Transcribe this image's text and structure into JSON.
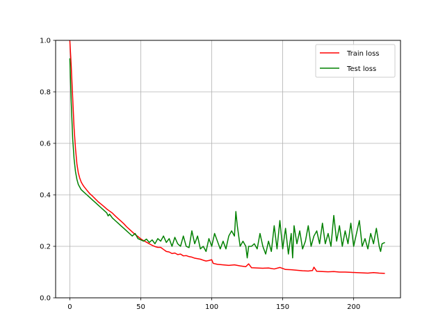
{
  "chart_data": {
    "type": "line",
    "title": "",
    "xlabel": "",
    "ylabel": "",
    "xlim": [
      -10,
      233
    ],
    "ylim": [
      0.0,
      1.0
    ],
    "xticks": [
      0,
      50,
      100,
      150,
      200
    ],
    "yticks": [
      0.0,
      0.2,
      0.4,
      0.6,
      0.8,
      1.0
    ],
    "xtick_labels": [
      "0",
      "50",
      "100",
      "150",
      "200"
    ],
    "ytick_labels": [
      "0.0",
      "0.2",
      "0.4",
      "0.6",
      "0.8",
      "1.0"
    ],
    "grid": true,
    "legend_position": "top-right",
    "series": [
      {
        "name": "Train loss",
        "color": "#ff0000",
        "points": [
          [
            0,
            1.0
          ],
          [
            1,
            0.9
          ],
          [
            2,
            0.78
          ],
          [
            3,
            0.66
          ],
          [
            4,
            0.58
          ],
          [
            5,
            0.52
          ],
          [
            6,
            0.485
          ],
          [
            7,
            0.465
          ],
          [
            8,
            0.45
          ],
          [
            9,
            0.44
          ],
          [
            10,
            0.432
          ],
          [
            12,
            0.418
          ],
          [
            14,
            0.405
          ],
          [
            16,
            0.395
          ],
          [
            18,
            0.384
          ],
          [
            20,
            0.373
          ],
          [
            22,
            0.364
          ],
          [
            24,
            0.355
          ],
          [
            26,
            0.345
          ],
          [
            28,
            0.337
          ],
          [
            30,
            0.329
          ],
          [
            32,
            0.318
          ],
          [
            34,
            0.308
          ],
          [
            36,
            0.298
          ],
          [
            38,
            0.288
          ],
          [
            40,
            0.276
          ],
          [
            42,
            0.266
          ],
          [
            44,
            0.256
          ],
          [
            46,
            0.246
          ],
          [
            48,
            0.238
          ],
          [
            50,
            0.229
          ],
          [
            52,
            0.222
          ],
          [
            54,
            0.216
          ],
          [
            56,
            0.21
          ],
          [
            58,
            0.204
          ],
          [
            60,
            0.199
          ],
          [
            62,
            0.196
          ],
          [
            64,
            0.196
          ],
          [
            66,
            0.188
          ],
          [
            68,
            0.18
          ],
          [
            70,
            0.178
          ],
          [
            72,
            0.172
          ],
          [
            74,
            0.174
          ],
          [
            76,
            0.168
          ],
          [
            78,
            0.17
          ],
          [
            80,
            0.163
          ],
          [
            82,
            0.164
          ],
          [
            84,
            0.16
          ],
          [
            86,
            0.158
          ],
          [
            88,
            0.154
          ],
          [
            90,
            0.152
          ],
          [
            92,
            0.15
          ],
          [
            94,
            0.146
          ],
          [
            96,
            0.143
          ],
          [
            98,
            0.145
          ],
          [
            100,
            0.148
          ],
          [
            101,
            0.134
          ],
          [
            104,
            0.13
          ],
          [
            108,
            0.128
          ],
          [
            112,
            0.126
          ],
          [
            116,
            0.128
          ],
          [
            120,
            0.124
          ],
          [
            124,
            0.121
          ],
          [
            126,
            0.132
          ],
          [
            128,
            0.117
          ],
          [
            132,
            0.116
          ],
          [
            136,
            0.115
          ],
          [
            140,
            0.116
          ],
          [
            144,
            0.112
          ],
          [
            148,
            0.118
          ],
          [
            152,
            0.11
          ],
          [
            156,
            0.109
          ],
          [
            160,
            0.107
          ],
          [
            164,
            0.105
          ],
          [
            168,
            0.104
          ],
          [
            171,
            0.106
          ],
          [
            172,
            0.119
          ],
          [
            174,
            0.103
          ],
          [
            178,
            0.102
          ],
          [
            182,
            0.101
          ],
          [
            186,
            0.102
          ],
          [
            190,
            0.1
          ],
          [
            194,
            0.1
          ],
          [
            198,
            0.099
          ],
          [
            202,
            0.098
          ],
          [
            206,
            0.097
          ],
          [
            210,
            0.096
          ],
          [
            214,
            0.098
          ],
          [
            218,
            0.096
          ],
          [
            222,
            0.095
          ]
        ]
      },
      {
        "name": "Test loss",
        "color": "#008000",
        "points": [
          [
            0,
            0.93
          ],
          [
            1,
            0.76
          ],
          [
            2,
            0.62
          ],
          [
            3,
            0.54
          ],
          [
            4,
            0.49
          ],
          [
            5,
            0.46
          ],
          [
            6,
            0.44
          ],
          [
            7,
            0.43
          ],
          [
            8,
            0.42
          ],
          [
            10,
            0.41
          ],
          [
            12,
            0.4
          ],
          [
            14,
            0.39
          ],
          [
            16,
            0.38
          ],
          [
            18,
            0.37
          ],
          [
            20,
            0.36
          ],
          [
            22,
            0.35
          ],
          [
            24,
            0.34
          ],
          [
            26,
            0.33
          ],
          [
            27,
            0.318
          ],
          [
            28,
            0.325
          ],
          [
            30,
            0.31
          ],
          [
            32,
            0.3
          ],
          [
            34,
            0.29
          ],
          [
            36,
            0.28
          ],
          [
            38,
            0.27
          ],
          [
            40,
            0.26
          ],
          [
            42,
            0.25
          ],
          [
            44,
            0.24
          ],
          [
            46,
            0.25
          ],
          [
            48,
            0.23
          ],
          [
            50,
            0.225
          ],
          [
            52,
            0.22
          ],
          [
            54,
            0.228
          ],
          [
            56,
            0.215
          ],
          [
            58,
            0.225
          ],
          [
            60,
            0.21
          ],
          [
            62,
            0.23
          ],
          [
            64,
            0.22
          ],
          [
            66,
            0.24
          ],
          [
            68,
            0.215
          ],
          [
            70,
            0.23
          ],
          [
            72,
            0.2
          ],
          [
            74,
            0.235
          ],
          [
            76,
            0.21
          ],
          [
            78,
            0.2
          ],
          [
            80,
            0.24
          ],
          [
            82,
            0.2
          ],
          [
            84,
            0.195
          ],
          [
            86,
            0.26
          ],
          [
            88,
            0.21
          ],
          [
            90,
            0.24
          ],
          [
            92,
            0.19
          ],
          [
            94,
            0.2
          ],
          [
            96,
            0.18
          ],
          [
            98,
            0.23
          ],
          [
            100,
            0.2
          ],
          [
            102,
            0.25
          ],
          [
            104,
            0.22
          ],
          [
            106,
            0.19
          ],
          [
            108,
            0.22
          ],
          [
            110,
            0.19
          ],
          [
            112,
            0.24
          ],
          [
            114,
            0.26
          ],
          [
            116,
            0.24
          ],
          [
            117,
            0.335
          ],
          [
            118,
            0.28
          ],
          [
            120,
            0.2
          ],
          [
            122,
            0.22
          ],
          [
            124,
            0.2
          ],
          [
            125,
            0.155
          ],
          [
            126,
            0.2
          ],
          [
            128,
            0.2
          ],
          [
            130,
            0.21
          ],
          [
            132,
            0.19
          ],
          [
            134,
            0.25
          ],
          [
            136,
            0.2
          ],
          [
            138,
            0.17
          ],
          [
            140,
            0.22
          ],
          [
            142,
            0.18
          ],
          [
            144,
            0.28
          ],
          [
            146,
            0.19
          ],
          [
            148,
            0.3
          ],
          [
            150,
            0.19
          ],
          [
            152,
            0.27
          ],
          [
            154,
            0.17
          ],
          [
            156,
            0.25
          ],
          [
            157,
            0.155
          ],
          [
            158,
            0.28
          ],
          [
            160,
            0.21
          ],
          [
            162,
            0.26
          ],
          [
            164,
            0.19
          ],
          [
            166,
            0.22
          ],
          [
            168,
            0.28
          ],
          [
            170,
            0.2
          ],
          [
            172,
            0.24
          ],
          [
            174,
            0.26
          ],
          [
            176,
            0.21
          ],
          [
            178,
            0.29
          ],
          [
            180,
            0.21
          ],
          [
            182,
            0.25
          ],
          [
            184,
            0.2
          ],
          [
            186,
            0.32
          ],
          [
            188,
            0.22
          ],
          [
            190,
            0.28
          ],
          [
            192,
            0.2
          ],
          [
            194,
            0.26
          ],
          [
            196,
            0.21
          ],
          [
            198,
            0.29
          ],
          [
            200,
            0.2
          ],
          [
            202,
            0.25
          ],
          [
            204,
            0.3
          ],
          [
            206,
            0.2
          ],
          [
            208,
            0.23
          ],
          [
            210,
            0.19
          ],
          [
            212,
            0.25
          ],
          [
            214,
            0.21
          ],
          [
            216,
            0.27
          ],
          [
            218,
            0.2
          ],
          [
            219,
            0.18
          ],
          [
            220,
            0.21
          ],
          [
            222,
            0.215
          ]
        ]
      }
    ]
  }
}
